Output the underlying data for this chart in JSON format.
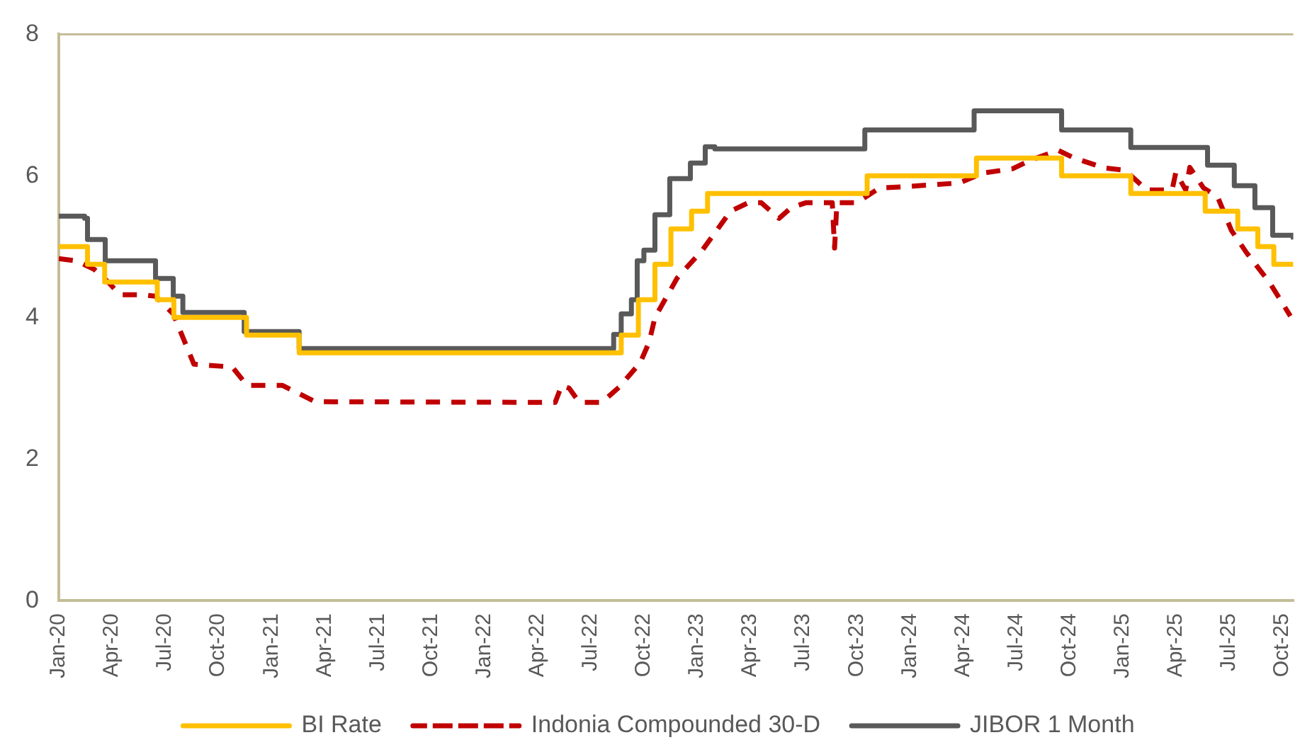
{
  "chart_data": {
    "type": "line",
    "xlim": [
      "2020-01-01",
      "2025-10-20"
    ],
    "ylim": [
      0,
      8
    ],
    "yticks": [
      0,
      2,
      4,
      6,
      8
    ],
    "xticks": [
      {
        "value": "2020-01",
        "label": "Jan-20"
      },
      {
        "value": "2020-04",
        "label": "Apr-20"
      },
      {
        "value": "2020-07",
        "label": "Jul-20"
      },
      {
        "value": "2020-10",
        "label": "Oct-20"
      },
      {
        "value": "2021-01",
        "label": "Jan-21"
      },
      {
        "value": "2021-04",
        "label": "Apr-21"
      },
      {
        "value": "2021-07",
        "label": "Jul-21"
      },
      {
        "value": "2021-10",
        "label": "Oct-21"
      },
      {
        "value": "2022-01",
        "label": "Jan-22"
      },
      {
        "value": "2022-04",
        "label": "Apr-22"
      },
      {
        "value": "2022-07",
        "label": "Jul-22"
      },
      {
        "value": "2022-10",
        "label": "Oct-22"
      },
      {
        "value": "2023-01",
        "label": "Jan-23"
      },
      {
        "value": "2023-04",
        "label": "Apr-23"
      },
      {
        "value": "2023-07",
        "label": "Jul-23"
      },
      {
        "value": "2023-10",
        "label": "Oct-23"
      },
      {
        "value": "2024-01",
        "label": "Jan-24"
      },
      {
        "value": "2024-04",
        "label": "Apr-24"
      },
      {
        "value": "2024-07",
        "label": "Jul-24"
      },
      {
        "value": "2024-10",
        "label": "Oct-24"
      },
      {
        "value": "2025-01",
        "label": "Jan-25"
      },
      {
        "value": "2025-04",
        "label": "Apr-25"
      },
      {
        "value": "2025-07",
        "label": "Jul-25"
      },
      {
        "value": "2025-10",
        "label": "Oct-25"
      }
    ],
    "grid": false,
    "legend": "bottom",
    "marker": "none",
    "series": [
      {
        "name": "BI Rate",
        "type": "step",
        "color": "#ffc000",
        "line_style": "solid",
        "x": [
          "2020-01-01",
          "2020-02-20",
          "2020-03-19",
          "2020-06-18",
          "2020-07-16",
          "2020-11-19",
          "2021-02-18",
          "2022-08-23",
          "2022-09-22",
          "2022-10-20",
          "2022-11-17",
          "2022-12-22",
          "2023-01-19",
          "2023-10-19",
          "2024-04-24",
          "2024-09-18",
          "2025-01-15",
          "2025-05-21",
          "2025-07-16",
          "2025-08-20",
          "2025-09-17",
          "2025-10-20"
        ],
        "values": [
          5.0,
          4.75,
          4.5,
          4.25,
          4.0,
          3.75,
          3.5,
          3.75,
          4.25,
          4.75,
          5.25,
          5.5,
          5.75,
          6.0,
          6.25,
          6.0,
          5.75,
          5.5,
          5.25,
          5.0,
          4.75,
          4.75
        ]
      },
      {
        "name": "Indonia Compounded 30-D",
        "color": "#c00000",
        "line_style": "dashed",
        "x": [
          "2020-01-01",
          "2020-02-01",
          "2020-03-01",
          "2020-03-25",
          "2020-04-15",
          "2020-05-20",
          "2020-06-15",
          "2020-07-15",
          "2020-08-05",
          "2020-08-20",
          "2020-10-25",
          "2020-11-20",
          "2021-01-20",
          "2021-03-15",
          "2022-05-01",
          "2022-05-12",
          "2022-05-25",
          "2022-06-12",
          "2022-07-20",
          "2022-08-20",
          "2022-09-25",
          "2022-10-10",
          "2022-10-20",
          "2022-11-28",
          "2023-01-10",
          "2023-02-28",
          "2023-03-28",
          "2023-04-20",
          "2023-05-20",
          "2023-06-10",
          "2023-07-05",
          "2023-08-20",
          "2023-08-24",
          "2023-08-28",
          "2023-10-01",
          "2023-11-10",
          "2023-12-28",
          "2024-03-25",
          "2024-05-05",
          "2024-06-25",
          "2024-07-25",
          "2024-09-12",
          "2024-10-10",
          "2024-12-01",
          "2025-01-05",
          "2025-02-12",
          "2025-03-25",
          "2025-04-01",
          "2025-04-18",
          "2025-04-25",
          "2025-05-18",
          "2025-06-12",
          "2025-07-05",
          "2025-08-01",
          "2025-09-10",
          "2025-10-15"
        ],
        "values": [
          4.83,
          4.8,
          4.68,
          4.5,
          4.32,
          4.32,
          4.3,
          4.05,
          3.64,
          3.34,
          3.3,
          3.04,
          3.04,
          2.81,
          2.8,
          3.04,
          3.0,
          2.8,
          2.8,
          3.02,
          3.36,
          3.65,
          4.0,
          4.56,
          4.95,
          5.5,
          5.62,
          5.62,
          5.4,
          5.55,
          5.62,
          5.62,
          4.98,
          5.62,
          5.62,
          5.83,
          5.85,
          5.9,
          6.04,
          6.1,
          6.22,
          6.36,
          6.25,
          6.11,
          6.08,
          5.8,
          5.8,
          6.05,
          5.8,
          6.12,
          5.83,
          5.7,
          5.23,
          4.91,
          4.49,
          4.02
        ]
      },
      {
        "name": "JIBOR 1 Month",
        "type": "step",
        "color": "#595959",
        "line_style": "solid",
        "x": [
          "2020-01-01",
          "2020-02-15",
          "2020-02-20",
          "2020-03-20",
          "2020-06-15",
          "2020-07-15",
          "2020-08-01",
          "2020-11-15",
          "2021-02-18",
          "2022-08-10",
          "2022-08-23",
          "2022-09-10",
          "2022-09-20",
          "2022-10-01",
          "2022-10-20",
          "2022-11-15",
          "2022-12-20",
          "2023-01-15",
          "2023-02-01",
          "2023-10-15",
          "2024-04-20",
          "2024-09-18",
          "2025-01-15",
          "2025-05-25",
          "2025-07-10",
          "2025-08-15",
          "2025-09-15",
          "2025-10-20"
        ],
        "values": [
          5.43,
          5.4,
          5.1,
          4.8,
          4.55,
          4.3,
          4.07,
          3.8,
          3.56,
          3.76,
          4.05,
          4.25,
          4.8,
          4.95,
          5.45,
          5.96,
          6.18,
          6.41,
          6.38,
          6.65,
          6.92,
          6.65,
          6.4,
          6.15,
          5.86,
          5.55,
          5.16,
          5.1
        ]
      }
    ]
  }
}
